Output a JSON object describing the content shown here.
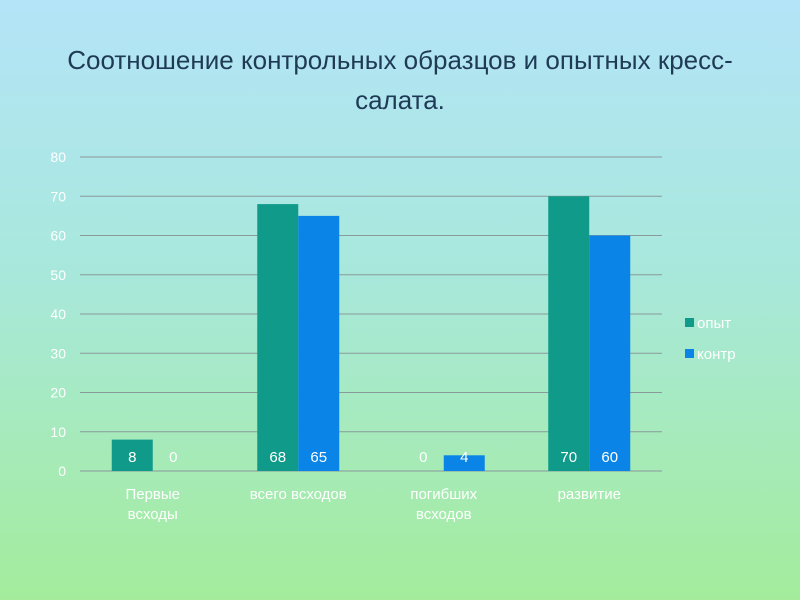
{
  "title": "Соотношение контрольных образцов и опытных кресс- салата.",
  "chart_data": {
    "type": "bar",
    "title": "Соотношение контрольных образцов и опытных кресс- салата.",
    "categories": [
      [
        "Первые",
        "всходы"
      ],
      [
        "всего всходов"
      ],
      [
        "погибших",
        "всходов"
      ],
      [
        "развитие"
      ]
    ],
    "series": [
      {
        "name": "опыт",
        "values": [
          8,
          68,
          0,
          70
        ],
        "color": "#0f9a8a"
      },
      {
        "name": "контр",
        "values": [
          0,
          65,
          4,
          60
        ],
        "color": "#0a84e6"
      }
    ],
    "ylim": [
      0,
      80
    ],
    "yticks": [
      0,
      10,
      20,
      30,
      40,
      50,
      60,
      70,
      80
    ],
    "grid": true,
    "legend_position": "right",
    "xlabel": "",
    "ylabel": ""
  }
}
